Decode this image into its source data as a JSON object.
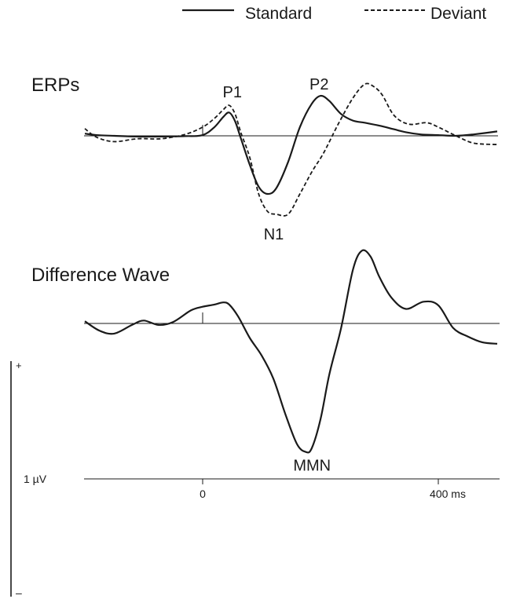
{
  "chart_data": [
    {
      "type": "line",
      "title": "ERPs",
      "legend": {
        "placement": "top-right",
        "entries": [
          {
            "label": "Standard",
            "style": "solid"
          },
          {
            "label": "Deviant",
            "style": "dashed"
          }
        ]
      },
      "x_unit": "ms",
      "series": [
        {
          "name": "Standard",
          "style": "solid",
          "x": [
            -200,
            -180,
            -150,
            -110,
            -70,
            -30,
            0,
            20,
            35,
            45,
            55,
            65,
            80,
            95,
            110,
            125,
            145,
            165,
            185,
            200,
            215,
            235,
            255,
            275,
            300,
            325,
            345,
            370,
            400,
            430,
            460,
            500
          ],
          "y": [
            0.15,
            0.05,
            0.0,
            -0.05,
            -0.05,
            -0.02,
            0.05,
            0.6,
            1.3,
            1.6,
            1.0,
            -0.2,
            -2.0,
            -3.5,
            -4.0,
            -3.6,
            -1.8,
            0.6,
            2.2,
            2.75,
            2.4,
            1.5,
            1.05,
            0.9,
            0.7,
            0.45,
            0.25,
            0.1,
            0.05,
            0.0,
            0.1,
            0.3
          ]
        },
        {
          "name": "Deviant",
          "style": "dashed",
          "x": [
            -200,
            -180,
            -150,
            -110,
            -70,
            -30,
            0,
            20,
            35,
            45,
            55,
            65,
            80,
            95,
            110,
            125,
            145,
            165,
            185,
            205,
            230,
            255,
            275,
            290,
            305,
            325,
            350,
            380,
            400,
            430,
            460,
            500
          ],
          "y": [
            0.5,
            -0.1,
            -0.4,
            -0.2,
            -0.2,
            0.1,
            0.6,
            1.2,
            1.8,
            2.1,
            1.5,
            0.2,
            -1.5,
            -4.0,
            -5.2,
            -5.4,
            -5.4,
            -4.0,
            -2.5,
            -1.2,
            0.8,
            2.6,
            3.55,
            3.4,
            2.8,
            1.4,
            0.8,
            0.9,
            0.6,
            0.0,
            -0.5,
            -0.6
          ]
        }
      ],
      "annotations": [
        {
          "text": "P1",
          "x": 45,
          "y": 2.1
        },
        {
          "text": "N1",
          "x": 110,
          "y": -5.4
        },
        {
          "text": "P2",
          "x": 195,
          "y": 2.75
        }
      ]
    },
    {
      "type": "line",
      "title": "Difference Wave",
      "x_unit": "ms",
      "series": [
        {
          "name": "",
          "style": "solid",
          "x": [
            -200,
            -175,
            -150,
            -120,
            -100,
            -75,
            -50,
            -20,
            0,
            20,
            35,
            45,
            60,
            80,
            100,
            120,
            140,
            160,
            175,
            185,
            200,
            215,
            235,
            255,
            270,
            285,
            300,
            320,
            345,
            375,
            400,
            425,
            450,
            475,
            500
          ],
          "y": [
            0.15,
            -0.5,
            -0.7,
            -0.1,
            0.2,
            -0.1,
            0.1,
            0.9,
            1.15,
            1.3,
            1.45,
            1.3,
            0.5,
            -1.0,
            -2.2,
            -3.8,
            -6.2,
            -8.3,
            -8.85,
            -8.6,
            -6.6,
            -3.5,
            -0.3,
            3.7,
            5.0,
            4.6,
            3.2,
            1.8,
            1.0,
            1.5,
            1.25,
            -0.3,
            -0.9,
            -1.3,
            -1.4
          ]
        }
      ],
      "annotations": [
        {
          "text": "MMN",
          "x": 175,
          "y": -8.85
        }
      ]
    }
  ],
  "time_axis": {
    "ticks": [
      {
        "value": 0,
        "label": "0"
      },
      {
        "value": 400,
        "label": "400 ms"
      }
    ],
    "range": [
      -200,
      500
    ]
  },
  "amplitude_scale": {
    "label": "1 µV",
    "top_label": "+",
    "bottom_label": "–"
  }
}
